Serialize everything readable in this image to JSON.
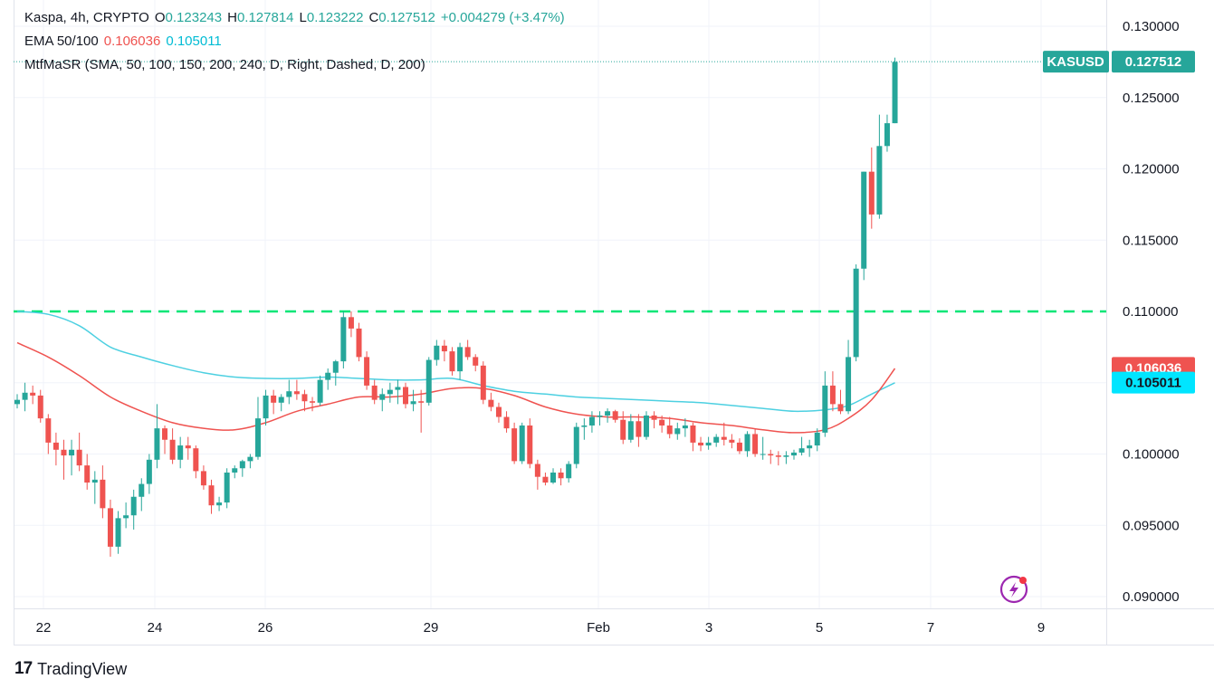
{
  "legend": {
    "symbol": "Kaspa, 4h, CRYPTO",
    "o_label": "O",
    "o_value": "0.123243",
    "h_label": "H",
    "h_value": "0.127814",
    "l_label": "L",
    "l_value": "0.123222",
    "c_label": "C",
    "c_value": "0.127512",
    "change": "+0.004279 (+3.47%)",
    "ema_label": "EMA 50/100",
    "ema50": "0.106036",
    "ema100": "0.105011",
    "mtf": "MtfMaSR (SMA, 50, 100, 150, 200, 240, D, Right, Dashed, D, 200)"
  },
  "badges": {
    "symbol": "KASUSD",
    "price": "0.127512",
    "ema50": "0.106036",
    "ema100": "0.105011"
  },
  "brand": {
    "logo": "17",
    "name": "TradingView"
  },
  "colors": {
    "up": "#26a69a",
    "down": "#ef5350",
    "ema50": "#ef5350",
    "ema100": "#4dd0e1",
    "level": "#00e676",
    "badge_price": "#26a69a",
    "grid": "#f0f3fa",
    "text": "#131722"
  },
  "chart_data": {
    "type": "candlestick",
    "timeframe": "4h",
    "y_ticks": [
      "0.130000",
      "0.125000",
      "0.120000",
      "0.115000",
      "0.110000",
      "0.100000",
      "0.095000",
      "0.090000"
    ],
    "x_ticks": [
      "22",
      "24",
      "26",
      "29",
      "Feb",
      "3",
      "5",
      "7",
      "9"
    ],
    "ylim": [
      0.0898,
      0.1315
    ],
    "resistance_level": 0.11,
    "last_price": 0.127512,
    "ohlc": [
      [
        0.1035,
        0.1042,
        0.1032,
        0.1038
      ],
      [
        0.1038,
        0.105,
        0.103,
        0.1043
      ],
      [
        0.1043,
        0.1048,
        0.1035,
        0.1041
      ],
      [
        0.1041,
        0.1045,
        0.1022,
        0.1025
      ],
      [
        0.1025,
        0.1028,
        0.1,
        0.1008
      ],
      [
        0.1008,
        0.1015,
        0.0992,
        0.1003
      ],
      [
        0.1003,
        0.101,
        0.0982,
        0.0999
      ],
      [
        0.0999,
        0.101,
        0.0985,
        0.1003
      ],
      [
        0.1003,
        0.1015,
        0.0988,
        0.0992
      ],
      [
        0.0992,
        0.1,
        0.0975,
        0.098
      ],
      [
        0.098,
        0.0988,
        0.0965,
        0.0982
      ],
      [
        0.0982,
        0.0992,
        0.0955,
        0.0962
      ],
      [
        0.0962,
        0.0968,
        0.0928,
        0.0935
      ],
      [
        0.0935,
        0.096,
        0.093,
        0.0955
      ],
      [
        0.0955,
        0.0966,
        0.0948,
        0.0957
      ],
      [
        0.0957,
        0.0975,
        0.0947,
        0.097
      ],
      [
        0.097,
        0.0983,
        0.096,
        0.0979
      ],
      [
        0.0979,
        0.1,
        0.0972,
        0.0996
      ],
      [
        0.0996,
        0.1035,
        0.099,
        0.1018
      ],
      [
        0.1018,
        0.102,
        0.1,
        0.101
      ],
      [
        0.101,
        0.1018,
        0.0993,
        0.0996
      ],
      [
        0.0996,
        0.1012,
        0.099,
        0.1006
      ],
      [
        0.1006,
        0.1012,
        0.0996,
        0.1004
      ],
      [
        0.1004,
        0.1006,
        0.0983,
        0.0988
      ],
      [
        0.0988,
        0.0992,
        0.0975,
        0.0978
      ],
      [
        0.0978,
        0.0982,
        0.0958,
        0.0964
      ],
      [
        0.0964,
        0.097,
        0.096,
        0.0966
      ],
      [
        0.0966,
        0.099,
        0.0962,
        0.0987
      ],
      [
        0.0987,
        0.0992,
        0.0983,
        0.099
      ],
      [
        0.099,
        0.0996,
        0.0984,
        0.0995
      ],
      [
        0.0995,
        0.1,
        0.099,
        0.0998
      ],
      [
        0.0998,
        0.104,
        0.0996,
        0.1025
      ],
      [
        0.1025,
        0.1045,
        0.102,
        0.1041
      ],
      [
        0.1041,
        0.1045,
        0.1028,
        0.1036
      ],
      [
        0.1036,
        0.1042,
        0.103,
        0.104
      ],
      [
        0.104,
        0.1052,
        0.1035,
        0.1044
      ],
      [
        0.1044,
        0.1052,
        0.1038,
        0.1042
      ],
      [
        0.1042,
        0.1045,
        0.103,
        0.1037
      ],
      [
        0.1037,
        0.104,
        0.103,
        0.1036
      ],
      [
        0.1036,
        0.1055,
        0.1034,
        0.1052
      ],
      [
        0.1052,
        0.106,
        0.1045,
        0.1057
      ],
      [
        0.1057,
        0.1066,
        0.1048,
        0.1065
      ],
      [
        0.1065,
        0.11,
        0.106,
        0.1096
      ],
      [
        0.1096,
        0.11,
        0.1082,
        0.1088
      ],
      [
        0.1088,
        0.1092,
        0.1065,
        0.1068
      ],
      [
        0.1068,
        0.1072,
        0.1045,
        0.1048
      ],
      [
        0.1048,
        0.1052,
        0.1035,
        0.1038
      ],
      [
        0.1038,
        0.1046,
        0.103,
        0.1042
      ],
      [
        0.1042,
        0.105,
        0.1036,
        0.1045
      ],
      [
        0.1045,
        0.1052,
        0.1035,
        0.1047
      ],
      [
        0.1047,
        0.105,
        0.1032,
        0.1035
      ],
      [
        0.1035,
        0.1045,
        0.103,
        0.1037
      ],
      [
        0.1037,
        0.1045,
        0.1015,
        0.1036
      ],
      [
        0.1036,
        0.1068,
        0.1034,
        0.1066
      ],
      [
        0.1066,
        0.108,
        0.1062,
        0.1076
      ],
      [
        0.1076,
        0.108,
        0.1065,
        0.1072
      ],
      [
        0.1072,
        0.1075,
        0.1055,
        0.1058
      ],
      [
        0.1058,
        0.1078,
        0.1052,
        0.1075
      ],
      [
        0.1075,
        0.108,
        0.1066,
        0.1068
      ],
      [
        0.1068,
        0.107,
        0.1058,
        0.1062
      ],
      [
        0.1062,
        0.1065,
        0.1035,
        0.1038
      ],
      [
        0.1038,
        0.1043,
        0.103,
        0.1033
      ],
      [
        0.1033,
        0.1036,
        0.1022,
        0.1026
      ],
      [
        0.1026,
        0.103,
        0.1015,
        0.1018
      ],
      [
        0.1018,
        0.1022,
        0.0993,
        0.0995
      ],
      [
        0.0995,
        0.1022,
        0.0993,
        0.102
      ],
      [
        0.102,
        0.1025,
        0.099,
        0.0993
      ],
      [
        0.0993,
        0.0996,
        0.0975,
        0.0984
      ],
      [
        0.0984,
        0.0987,
        0.0978,
        0.098
      ],
      [
        0.098,
        0.099,
        0.0979,
        0.0987
      ],
      [
        0.0987,
        0.099,
        0.0978,
        0.0983
      ],
      [
        0.0983,
        0.0995,
        0.098,
        0.0993
      ],
      [
        0.0993,
        0.1022,
        0.099,
        0.1019
      ],
      [
        0.1019,
        0.1025,
        0.101,
        0.102
      ],
      [
        0.102,
        0.103,
        0.1015,
        0.1026
      ],
      [
        0.1026,
        0.103,
        0.102,
        0.1027
      ],
      [
        0.1027,
        0.1032,
        0.1022,
        0.103
      ],
      [
        0.103,
        0.1031,
        0.1022,
        0.1024
      ],
      [
        0.1024,
        0.103,
        0.1007,
        0.101
      ],
      [
        0.101,
        0.1028,
        0.1008,
        0.1023
      ],
      [
        0.1023,
        0.1028,
        0.1005,
        0.1012
      ],
      [
        0.1012,
        0.103,
        0.101,
        0.1027
      ],
      [
        0.1027,
        0.103,
        0.1018,
        0.1024
      ],
      [
        0.1024,
        0.1027,
        0.1015,
        0.102
      ],
      [
        0.102,
        0.1026,
        0.1011,
        0.1014
      ],
      [
        0.1014,
        0.1022,
        0.101,
        0.1018
      ],
      [
        0.1018,
        0.1025,
        0.1012,
        0.102
      ],
      [
        0.102,
        0.1022,
        0.1002,
        0.1008
      ],
      [
        0.1008,
        0.1012,
        0.1002,
        0.1006
      ],
      [
        0.1006,
        0.1012,
        0.1003,
        0.1008
      ],
      [
        0.1008,
        0.1014,
        0.1005,
        0.1012
      ],
      [
        0.1012,
        0.1022,
        0.1006,
        0.101
      ],
      [
        0.101,
        0.1014,
        0.1004,
        0.1008
      ],
      [
        0.1008,
        0.1011,
        0.1,
        0.1002
      ],
      [
        0.1002,
        0.1016,
        0.0998,
        0.1014
      ],
      [
        0.1014,
        0.1018,
        0.0998,
        0.1
      ],
      [
        0.1,
        0.1012,
        0.0996,
        0.1
      ],
      [
        0.1,
        0.1003,
        0.0993,
        0.0999
      ],
      [
        0.0999,
        0.1002,
        0.0992,
        0.0998
      ],
      [
        0.0998,
        0.1002,
        0.0993,
        0.0999
      ],
      [
        0.0999,
        0.1003,
        0.0996,
        0.1001
      ],
      [
        0.1001,
        0.1012,
        0.0999,
        0.1004
      ],
      [
        0.1004,
        0.101,
        0.0998,
        0.1006
      ],
      [
        0.1006,
        0.1018,
        0.1002,
        0.1015
      ],
      [
        0.1015,
        0.1058,
        0.1012,
        0.1048
      ],
      [
        0.1048,
        0.1058,
        0.103,
        0.1035
      ],
      [
        0.1035,
        0.1045,
        0.1028,
        0.103
      ],
      [
        0.103,
        0.108,
        0.1028,
        0.1068
      ],
      [
        0.1068,
        0.1133,
        0.1065,
        0.113
      ],
      [
        0.113,
        0.1198,
        0.1122,
        0.1198
      ],
      [
        0.1198,
        0.1215,
        0.1158,
        0.1168
      ],
      [
        0.1168,
        0.1238,
        0.1165,
        0.1216
      ],
      [
        0.1216,
        0.1238,
        0.1212,
        0.1232
      ],
      [
        0.1232,
        0.1278,
        0.1232,
        0.1275
      ]
    ],
    "ema50": [
      [
        0,
        0.1078
      ],
      [
        4,
        0.1068
      ],
      [
        8,
        0.1055
      ],
      [
        12,
        0.104
      ],
      [
        16,
        0.103
      ],
      [
        20,
        0.1022
      ],
      [
        24,
        0.1018
      ],
      [
        28,
        0.1017
      ],
      [
        32,
        0.1022
      ],
      [
        36,
        0.103
      ],
      [
        40,
        0.1035
      ],
      [
        44,
        0.104
      ],
      [
        48,
        0.104
      ],
      [
        52,
        0.1042
      ],
      [
        56,
        0.1046
      ],
      [
        60,
        0.1046
      ],
      [
        64,
        0.1041
      ],
      [
        68,
        0.1033
      ],
      [
        72,
        0.1028
      ],
      [
        76,
        0.1026
      ],
      [
        80,
        0.1026
      ],
      [
        84,
        0.1025
      ],
      [
        88,
        0.1022
      ],
      [
        92,
        0.102
      ],
      [
        96,
        0.1017
      ],
      [
        100,
        0.1015
      ],
      [
        104,
        0.1017
      ],
      [
        107,
        0.1025
      ],
      [
        110,
        0.1038
      ],
      [
        113,
        0.106
      ]
    ],
    "ema100": [
      [
        0,
        0.11
      ],
      [
        4,
        0.1098
      ],
      [
        8,
        0.109
      ],
      [
        12,
        0.1075
      ],
      [
        16,
        0.1068
      ],
      [
        20,
        0.1062
      ],
      [
        24,
        0.1057
      ],
      [
        28,
        0.1054
      ],
      [
        32,
        0.1053
      ],
      [
        36,
        0.1053
      ],
      [
        40,
        0.1054
      ],
      [
        44,
        0.1053
      ],
      [
        48,
        0.1052
      ],
      [
        52,
        0.1052
      ],
      [
        56,
        0.1053
      ],
      [
        60,
        0.1048
      ],
      [
        64,
        0.1044
      ],
      [
        68,
        0.1042
      ],
      [
        72,
        0.104
      ],
      [
        76,
        0.1039
      ],
      [
        80,
        0.1038
      ],
      [
        84,
        0.1037
      ],
      [
        88,
        0.1036
      ],
      [
        92,
        0.1034
      ],
      [
        96,
        0.1032
      ],
      [
        100,
        0.103
      ],
      [
        104,
        0.1031
      ],
      [
        107,
        0.1034
      ],
      [
        110,
        0.1042
      ],
      [
        113,
        0.105
      ]
    ]
  }
}
